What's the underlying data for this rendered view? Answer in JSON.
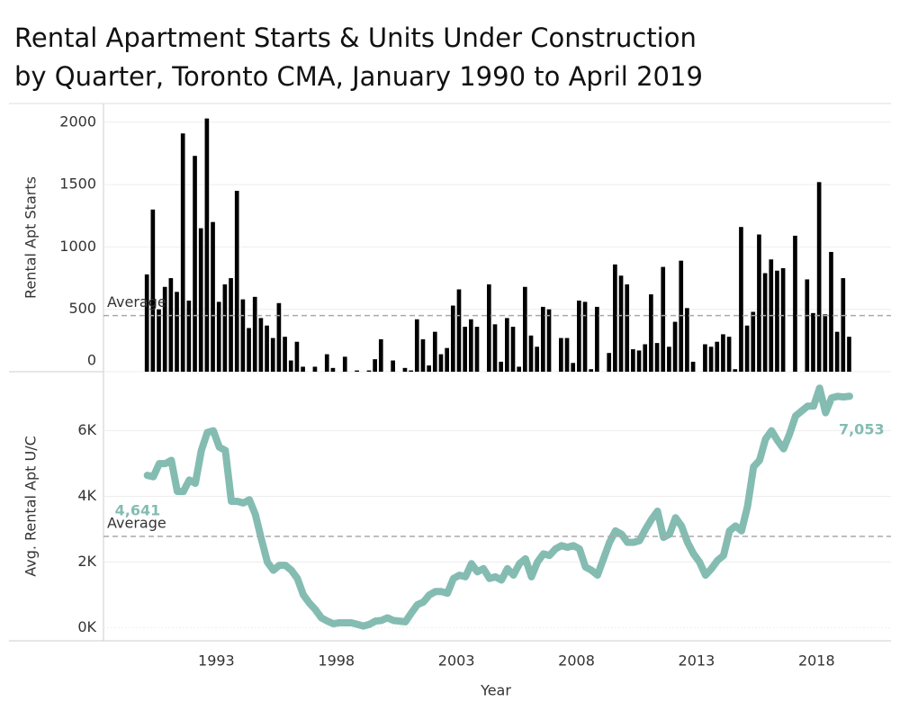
{
  "chart_data": [
    {
      "type": "bar",
      "title": "Rental Apartment Starts & Units Under Construction by Quarter, Toronto CMA, January 1990 to April 2019",
      "ylabel": "Rental Apt Starts",
      "color": "#000000",
      "x": [
        1990,
        1990.25,
        1990.5,
        1990.75,
        1991,
        1991.25,
        1991.5,
        1991.75,
        1992,
        1992.25,
        1992.5,
        1992.75,
        1993,
        1993.25,
        1993.5,
        1993.75,
        1994,
        1994.25,
        1994.5,
        1994.75,
        1995,
        1995.25,
        1995.5,
        1995.75,
        1996,
        1996.25,
        1996.5,
        1996.75,
        1997,
        1997.25,
        1997.5,
        1997.75,
        1998,
        1998.25,
        1998.5,
        1998.75,
        1999,
        1999.25,
        1999.5,
        1999.75,
        2000,
        2000.25,
        2000.5,
        2000.75,
        2001,
        2001.25,
        2001.5,
        2001.75,
        2002,
        2002.25,
        2002.5,
        2002.75,
        2003,
        2003.25,
        2003.5,
        2003.75,
        2004,
        2004.25,
        2004.5,
        2004.75,
        2005,
        2005.25,
        2005.5,
        2005.75,
        2006,
        2006.25,
        2006.5,
        2006.75,
        2007,
        2007.25,
        2007.5,
        2007.75,
        2008,
        2008.25,
        2008.5,
        2008.75,
        2009,
        2009.25,
        2009.5,
        2009.75,
        2010,
        2010.25,
        2010.5,
        2010.75,
        2011,
        2011.25,
        2011.5,
        2011.75,
        2012,
        2012.25,
        2012.5,
        2012.75,
        2013,
        2013.25,
        2013.5,
        2013.75,
        2014,
        2014.25,
        2014.5,
        2014.75,
        2015,
        2015.25,
        2015.5,
        2015.75,
        2016,
        2016.25,
        2016.5,
        2016.75,
        2017,
        2017.25,
        2017.5,
        2017.75,
        2018,
        2018.25,
        2018.5,
        2018.75,
        2019,
        2019.25
      ],
      "values": [
        780,
        1300,
        500,
        680,
        750,
        640,
        1910,
        570,
        1730,
        1150,
        2030,
        1200,
        560,
        700,
        750,
        1450,
        580,
        350,
        600,
        430,
        370,
        270,
        550,
        280,
        90,
        240,
        40,
        0,
        40,
        0,
        140,
        30,
        0,
        120,
        0,
        10,
        0,
        10,
        100,
        260,
        0,
        90,
        0,
        30,
        10,
        420,
        260,
        50,
        320,
        140,
        190,
        530,
        660,
        360,
        420,
        360,
        0,
        700,
        380,
        80,
        430,
        360,
        40,
        680,
        290,
        200,
        520,
        500,
        0,
        270,
        270,
        70,
        570,
        560,
        20,
        520,
        0,
        150,
        860,
        770,
        700,
        180,
        170,
        220,
        620,
        230,
        840,
        200,
        400,
        890,
        510,
        80,
        0,
        220,
        200,
        240,
        300,
        280,
        20,
        1160,
        370,
        480,
        1100,
        790,
        900,
        810,
        830,
        0,
        1090,
        0,
        740,
        470,
        1520,
        460,
        960,
        320,
        750,
        280
      ],
      "xlim": [
        1988.3,
        2021.1
      ],
      "ylim": [
        0,
        2150
      ],
      "yticks": [
        0,
        500,
        1000,
        1500,
        2000
      ],
      "average": 450,
      "average_label": "Average"
    },
    {
      "type": "line",
      "ylabel": "Avg. Rental Apt U/C",
      "xlabel": "Year",
      "color": "#84bcb2",
      "x": [
        1990,
        1990.25,
        1990.5,
        1990.75,
        1991,
        1991.25,
        1991.5,
        1991.75,
        1992,
        1992.25,
        1992.5,
        1992.75,
        1993,
        1993.25,
        1993.5,
        1993.75,
        1994,
        1994.25,
        1994.5,
        1994.75,
        1995,
        1995.25,
        1995.5,
        1995.75,
        1996,
        1996.25,
        1996.5,
        1996.75,
        1997,
        1997.25,
        1997.5,
        1997.75,
        1998,
        1998.25,
        1998.5,
        1998.75,
        1999,
        1999.25,
        1999.5,
        1999.75,
        2000,
        2000.25,
        2000.5,
        2000.75,
        2001,
        2001.25,
        2001.5,
        2001.75,
        2002,
        2002.25,
        2002.5,
        2002.75,
        2003,
        2003.25,
        2003.5,
        2003.75,
        2004,
        2004.25,
        2004.5,
        2004.75,
        2005,
        2005.25,
        2005.5,
        2005.75,
        2006,
        2006.25,
        2006.5,
        2006.75,
        2007,
        2007.25,
        2007.5,
        2007.75,
        2008,
        2008.25,
        2008.5,
        2008.75,
        2009,
        2009.25,
        2009.5,
        2009.75,
        2010,
        2010.25,
        2010.5,
        2010.75,
        2011,
        2011.25,
        2011.5,
        2011.75,
        2012,
        2012.25,
        2012.5,
        2012.75,
        2013,
        2013.25,
        2013.5,
        2013.75,
        2014,
        2014.25,
        2014.5,
        2014.75,
        2015,
        2015.25,
        2015.5,
        2015.75,
        2016,
        2016.25,
        2016.5,
        2016.75,
        2017,
        2017.25,
        2017.5,
        2017.75,
        2018,
        2018.25,
        2018.5,
        2018.75,
        2019,
        2019.25
      ],
      "values": [
        4641,
        4600,
        5000,
        5000,
        5100,
        4150,
        4150,
        4500,
        4400,
        5400,
        5950,
        6000,
        5500,
        5400,
        3850,
        3850,
        3800,
        3900,
        3450,
        2700,
        2000,
        1750,
        1900,
        1900,
        1750,
        1500,
        1000,
        750,
        550,
        300,
        200,
        120,
        150,
        150,
        150,
        100,
        50,
        100,
        200,
        220,
        300,
        220,
        200,
        180,
        450,
        700,
        780,
        1000,
        1100,
        1100,
        1050,
        1500,
        1600,
        1550,
        1950,
        1700,
        1800,
        1500,
        1550,
        1450,
        1800,
        1600,
        1950,
        2100,
        1550,
        2000,
        2250,
        2200,
        2400,
        2500,
        2450,
        2500,
        2400,
        1850,
        1750,
        1600,
        2100,
        2600,
        2950,
        2850,
        2600,
        2600,
        2650,
        3000,
        3300,
        3550,
        2750,
        2850,
        3350,
        3100,
        2600,
        2250,
        2000,
        1600,
        1800,
        2050,
        2200,
        2950,
        3100,
        2950,
        3700,
        4900,
        5100,
        5750,
        6000,
        5700,
        5450,
        5900,
        6450,
        6600,
        6750,
        6750,
        7300,
        6550,
        7000,
        7050,
        7030,
        7053
      ],
      "value_labels": {
        "0": "4,641",
        "117": "7,053"
      },
      "xlim": [
        1988.3,
        2021.1
      ],
      "ylim": [
        -400,
        7800
      ],
      "yticks": [
        {
          "value": 0,
          "label": "0K"
        },
        {
          "value": 2000,
          "label": "2K"
        },
        {
          "value": 4000,
          "label": "4K"
        },
        {
          "value": 6000,
          "label": "6K"
        }
      ],
      "xticks": [
        1993,
        1998,
        2003,
        2008,
        2013,
        2018
      ],
      "average": 2780,
      "average_label": "Average"
    }
  ]
}
